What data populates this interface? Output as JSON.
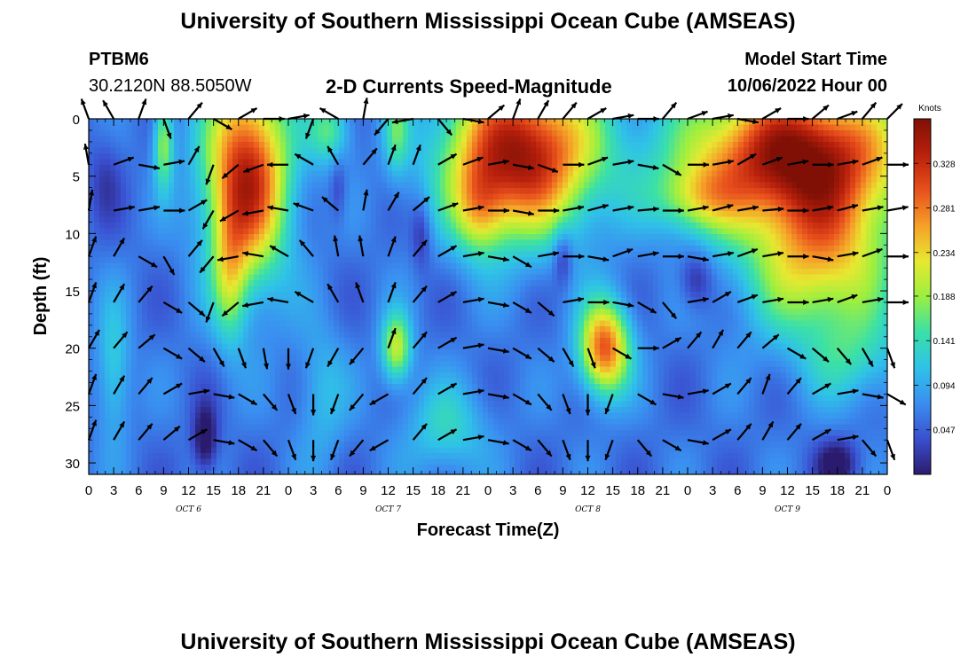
{
  "header": {
    "title": "University of Southern Mississippi Ocean Cube (AMSEAS)",
    "station": "PTBM6",
    "coords": "30.2120N  88.5050W",
    "plot_title": "2-D Currents Speed-Magnitude",
    "model_start_label": "Model Start Time",
    "model_start_value": "10/06/2022 Hour 00"
  },
  "footer": {
    "title": "University of Southern Mississippi Ocean Cube (AMSEAS)"
  },
  "chart_data": {
    "type": "heatmap",
    "title": "2-D Currents Speed-Magnitude",
    "xlabel": "Forecast Time(Z)",
    "ylabel": "Depth (ft)",
    "x_tick_labels": [
      "0",
      "3",
      "6",
      "9",
      "12",
      "15",
      "18",
      "21",
      "0",
      "3",
      "6",
      "9",
      "12",
      "15",
      "18",
      "21",
      "0",
      "3",
      "6",
      "9",
      "12",
      "15",
      "18",
      "21",
      "0",
      "3",
      "6",
      "9",
      "12",
      "15",
      "18",
      "21",
      "0"
    ],
    "x_hours": [
      0,
      3,
      6,
      9,
      12,
      15,
      18,
      21,
      24,
      27,
      30,
      33,
      36,
      39,
      42,
      45,
      48,
      51,
      54,
      57,
      60,
      63,
      66,
      69,
      72,
      75,
      78,
      81,
      84,
      87,
      90,
      93,
      96
    ],
    "day_labels": [
      {
        "text": "OCT 6",
        "hour": 12
      },
      {
        "text": "OCT 7",
        "hour": 36
      },
      {
        "text": "OCT 8",
        "hour": 60
      },
      {
        "text": "OCT 9",
        "hour": 84
      }
    ],
    "xlim": [
      0,
      96
    ],
    "y_ticks": [
      0,
      5,
      10,
      15,
      20,
      25,
      30
    ],
    "ylim": [
      0,
      31
    ],
    "y_inverted": true,
    "colorbar": {
      "label": "Knots",
      "ticks": [
        0.047,
        0.094,
        0.141,
        0.188,
        0.234,
        0.281,
        0.328
      ],
      "range": [
        0.0,
        0.375
      ],
      "colors": [
        "#2b1b6e",
        "#3a50d0",
        "#3a8ef0",
        "#2fc2e8",
        "#3ae0a8",
        "#9aef40",
        "#e8e830",
        "#f5a028",
        "#e8501c",
        "#b8200c",
        "#801006"
      ]
    },
    "vector_depths": [
      0,
      4,
      8,
      12,
      16,
      20,
      24,
      28
    ],
    "vector_hours": [
      0,
      3,
      6,
      9,
      12,
      15,
      18,
      21,
      24,
      27,
      30,
      33,
      36,
      39,
      42,
      45,
      48,
      51,
      54,
      57,
      60,
      63,
      66,
      69,
      72,
      75,
      78,
      81,
      84,
      87,
      90,
      93,
      96
    ],
    "vector_directions_deg": [
      [
        340,
        330,
        20,
        160,
        40,
        120,
        60,
        90,
        80,
        200,
        300,
        10,
        220,
        260,
        140,
        100,
        50,
        20,
        30,
        40,
        60,
        80,
        90,
        40,
        70,
        80,
        100,
        60,
        90,
        50,
        70,
        40,
        45
      ],
      [
        350,
        70,
        100,
        80,
        30,
        200,
        230,
        250,
        270,
        300,
        330,
        40,
        20,
        20,
        60,
        70,
        80,
        100,
        110,
        90,
        70,
        80,
        100,
        120,
        90,
        80,
        60,
        70,
        80,
        90,
        80,
        70,
        90
      ],
      [
        10,
        80,
        80,
        90,
        60,
        210,
        240,
        260,
        280,
        290,
        310,
        10,
        30,
        50,
        70,
        80,
        90,
        100,
        90,
        80,
        75,
        80,
        85,
        90,
        80,
        75,
        80,
        85,
        90,
        80,
        75,
        80,
        80
      ],
      [
        20,
        30,
        120,
        150,
        40,
        220,
        260,
        280,
        300,
        320,
        350,
        350,
        20,
        40,
        60,
        80,
        100,
        120,
        80,
        90,
        100,
        70,
        80,
        90,
        100,
        80,
        70,
        80,
        90,
        100,
        80,
        70,
        90
      ],
      [
        20,
        30,
        40,
        120,
        130,
        200,
        230,
        260,
        280,
        300,
        330,
        340,
        20,
        40,
        60,
        80,
        100,
        120,
        130,
        80,
        90,
        100,
        120,
        140,
        80,
        60,
        70,
        80,
        90,
        80,
        70,
        80,
        90
      ],
      [
        30,
        40,
        50,
        120,
        130,
        150,
        160,
        170,
        180,
        200,
        210,
        220,
        20,
        40,
        60,
        80,
        100,
        120,
        130,
        150,
        160,
        120,
        90,
        60,
        40,
        30,
        40,
        50,
        120,
        130,
        140,
        150,
        160
      ],
      [
        20,
        30,
        40,
        60,
        80,
        100,
        120,
        140,
        160,
        180,
        200,
        220,
        240,
        40,
        60,
        80,
        100,
        120,
        140,
        160,
        180,
        200,
        120,
        100,
        80,
        60,
        40,
        20,
        40,
        60,
        80,
        100,
        120
      ],
      [
        20,
        30,
        40,
        50,
        60,
        100,
        120,
        140,
        160,
        180,
        200,
        220,
        240,
        40,
        60,
        80,
        100,
        120,
        140,
        160,
        180,
        200,
        140,
        120,
        100,
        60,
        40,
        30,
        40,
        60,
        80,
        140,
        160
      ]
    ]
  }
}
